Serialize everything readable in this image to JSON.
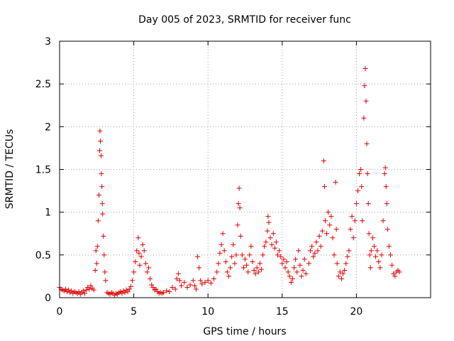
{
  "chart_data": {
    "type": "scatter",
    "title": "Day 005 of 2023, SRMTID for receiver func",
    "xlabel": "GPS time / hours",
    "ylabel": "SRMTID / TECUs",
    "xlim": [
      0,
      25
    ],
    "ylim": [
      0,
      3
    ],
    "xticks": [
      0,
      5,
      10,
      15,
      20
    ],
    "xtick_labels": [
      "0",
      "5",
      "10",
      "15",
      "20"
    ],
    "yticks": [
      0,
      0.5,
      1,
      1.5,
      2,
      2.5,
      3
    ],
    "ytick_labels": [
      "0",
      "0.5",
      "1",
      "1.5",
      "2",
      "2.5",
      "3"
    ],
    "grid": true,
    "marker": "plus",
    "marker_color": "#e00000",
    "series": [
      {
        "name": "SRMTID",
        "points": [
          [
            0.0,
            0.12
          ],
          [
            0.1,
            0.1
          ],
          [
            0.2,
            0.09
          ],
          [
            0.3,
            0.08
          ],
          [
            0.4,
            0.1
          ],
          [
            0.5,
            0.07
          ],
          [
            0.6,
            0.09
          ],
          [
            0.7,
            0.06
          ],
          [
            0.8,
            0.08
          ],
          [
            0.9,
            0.05
          ],
          [
            1.0,
            0.07
          ],
          [
            1.1,
            0.06
          ],
          [
            1.2,
            0.05
          ],
          [
            1.3,
            0.07
          ],
          [
            1.4,
            0.04
          ],
          [
            1.5,
            0.06
          ],
          [
            1.6,
            0.08
          ],
          [
            1.7,
            0.05
          ],
          [
            1.8,
            0.09
          ],
          [
            1.9,
            0.12
          ],
          [
            2.0,
            0.1
          ],
          [
            2.1,
            0.14
          ],
          [
            2.2,
            0.11
          ],
          [
            2.3,
            0.09
          ],
          [
            2.4,
            0.32
          ],
          [
            2.45,
            0.55
          ],
          [
            2.5,
            0.4
          ],
          [
            2.55,
            0.6
          ],
          [
            2.6,
            0.9
          ],
          [
            2.65,
            1.2
          ],
          [
            2.7,
            1.72
          ],
          [
            2.72,
            1.95
          ],
          [
            2.75,
            1.83
          ],
          [
            2.8,
            1.66
          ],
          [
            2.82,
            1.45
          ],
          [
            2.85,
            1.3
          ],
          [
            2.88,
            1.1
          ],
          [
            2.9,
            0.98
          ],
          [
            2.95,
            0.72
          ],
          [
            3.0,
            0.5
          ],
          [
            3.05,
            0.3
          ],
          [
            3.1,
            0.2
          ],
          [
            3.2,
            0.06
          ],
          [
            3.3,
            0.05
          ],
          [
            3.4,
            0.04
          ],
          [
            3.5,
            0.06
          ],
          [
            3.6,
            0.05
          ],
          [
            3.7,
            0.03
          ],
          [
            3.8,
            0.05
          ],
          [
            3.9,
            0.04
          ],
          [
            4.0,
            0.06
          ],
          [
            4.1,
            0.07
          ],
          [
            4.2,
            0.05
          ],
          [
            4.3,
            0.08
          ],
          [
            4.4,
            0.06
          ],
          [
            4.5,
            0.09
          ],
          [
            4.6,
            0.07
          ],
          [
            4.7,
            0.1
          ],
          [
            4.8,
            0.13
          ],
          [
            4.9,
            0.2
          ],
          [
            5.0,
            0.3
          ],
          [
            5.1,
            0.42
          ],
          [
            5.2,
            0.55
          ],
          [
            5.3,
            0.7
          ],
          [
            5.35,
            0.52
          ],
          [
            5.4,
            0.38
          ],
          [
            5.5,
            0.48
          ],
          [
            5.6,
            0.62
          ],
          [
            5.7,
            0.55
          ],
          [
            5.8,
            0.4
          ],
          [
            5.9,
            0.3
          ],
          [
            6.0,
            0.35
          ],
          [
            6.1,
            0.22
          ],
          [
            6.2,
            0.15
          ],
          [
            6.3,
            0.12
          ],
          [
            6.4,
            0.09
          ],
          [
            6.5,
            0.1
          ],
          [
            6.6,
            0.07
          ],
          [
            6.7,
            0.05
          ],
          [
            6.8,
            0.06
          ],
          [
            6.9,
            0.05
          ],
          [
            7.0,
            0.06
          ],
          [
            7.2,
            0.08
          ],
          [
            7.4,
            0.07
          ],
          [
            7.6,
            0.12
          ],
          [
            7.8,
            0.1
          ],
          [
            7.9,
            0.22
          ],
          [
            8.0,
            0.28
          ],
          [
            8.1,
            0.2
          ],
          [
            8.2,
            0.14
          ],
          [
            8.4,
            0.18
          ],
          [
            8.6,
            0.12
          ],
          [
            8.8,
            0.15
          ],
          [
            9.0,
            0.2
          ],
          [
            9.1,
            0.14
          ],
          [
            9.2,
            0.1
          ],
          [
            9.3,
            0.48
          ],
          [
            9.4,
            0.35
          ],
          [
            9.5,
            0.2
          ],
          [
            9.6,
            0.16
          ],
          [
            9.8,
            0.18
          ],
          [
            10.0,
            0.2
          ],
          [
            10.2,
            0.17
          ],
          [
            10.4,
            0.22
          ],
          [
            10.6,
            0.3
          ],
          [
            10.7,
            0.4
          ],
          [
            10.8,
            0.52
          ],
          [
            10.9,
            0.62
          ],
          [
            11.0,
            0.75
          ],
          [
            11.1,
            0.55
          ],
          [
            11.2,
            0.42
          ],
          [
            11.3,
            0.3
          ],
          [
            11.4,
            0.25
          ],
          [
            11.5,
            0.35
          ],
          [
            11.6,
            0.48
          ],
          [
            11.7,
            0.62
          ],
          [
            11.8,
            0.4
          ],
          [
            11.9,
            0.5
          ],
          [
            12.0,
            0.85
          ],
          [
            12.05,
            1.1
          ],
          [
            12.1,
            1.28
          ],
          [
            12.15,
            1.05
          ],
          [
            12.2,
            0.72
          ],
          [
            12.3,
            0.5
          ],
          [
            12.4,
            0.35
          ],
          [
            12.5,
            0.45
          ],
          [
            12.6,
            0.38
          ],
          [
            12.7,
            0.3
          ],
          [
            12.8,
            0.5
          ],
          [
            12.9,
            0.6
          ],
          [
            13.0,
            0.42
          ],
          [
            13.1,
            0.32
          ],
          [
            13.2,
            0.28
          ],
          [
            13.3,
            0.35
          ],
          [
            13.4,
            0.3
          ],
          [
            13.5,
            0.4
          ],
          [
            13.6,
            0.33
          ],
          [
            13.7,
            0.5
          ],
          [
            13.8,
            0.6
          ],
          [
            13.9,
            0.65
          ],
          [
            14.0,
            0.78
          ],
          [
            14.05,
            0.95
          ],
          [
            14.1,
            0.88
          ],
          [
            14.2,
            0.7
          ],
          [
            14.3,
            0.62
          ],
          [
            14.4,
            0.75
          ],
          [
            14.5,
            0.58
          ],
          [
            14.6,
            0.65
          ],
          [
            14.7,
            0.5
          ],
          [
            14.8,
            0.55
          ],
          [
            14.9,
            0.48
          ],
          [
            15.0,
            0.4
          ],
          [
            15.1,
            0.45
          ],
          [
            15.2,
            0.35
          ],
          [
            15.3,
            0.42
          ],
          [
            15.4,
            0.3
          ],
          [
            15.5,
            0.25
          ],
          [
            15.6,
            0.18
          ],
          [
            15.7,
            0.22
          ],
          [
            15.8,
            0.35
          ],
          [
            15.9,
            0.45
          ],
          [
            16.0,
            0.3
          ],
          [
            16.1,
            0.55
          ],
          [
            16.2,
            0.38
          ],
          [
            16.3,
            0.25
          ],
          [
            16.4,
            0.32
          ],
          [
            16.5,
            0.45
          ],
          [
            16.6,
            0.28
          ],
          [
            16.8,
            0.4
          ],
          [
            16.9,
            0.55
          ],
          [
            17.0,
            0.6
          ],
          [
            17.1,
            0.48
          ],
          [
            17.2,
            0.52
          ],
          [
            17.3,
            0.65
          ],
          [
            17.4,
            0.55
          ],
          [
            17.5,
            0.72
          ],
          [
            17.6,
            0.6
          ],
          [
            17.7,
            0.78
          ],
          [
            17.8,
            1.6
          ],
          [
            17.85,
            1.3
          ],
          [
            17.9,
            0.9
          ],
          [
            18.0,
            0.75
          ],
          [
            18.1,
            1.0
          ],
          [
            18.2,
            0.85
          ],
          [
            18.3,
            0.95
          ],
          [
            18.4,
            0.7
          ],
          [
            18.5,
            0.5
          ],
          [
            18.6,
            1.35
          ],
          [
            18.65,
            0.8
          ],
          [
            18.7,
            0.4
          ],
          [
            18.8,
            0.25
          ],
          [
            18.9,
            0.3
          ],
          [
            19.0,
            0.22
          ],
          [
            19.1,
            0.28
          ],
          [
            19.2,
            0.32
          ],
          [
            19.3,
            0.4
          ],
          [
            19.4,
            0.48
          ],
          [
            19.5,
            0.55
          ],
          [
            19.6,
            0.8
          ],
          [
            19.7,
            0.95
          ],
          [
            19.8,
            0.7
          ],
          [
            19.9,
            0.9
          ],
          [
            20.0,
            1.1
          ],
          [
            20.1,
            1.25
          ],
          [
            20.2,
            1.45
          ],
          [
            20.3,
            1.5
          ],
          [
            20.35,
            1.3
          ],
          [
            20.4,
            0.9
          ],
          [
            20.5,
            2.1
          ],
          [
            20.55,
            2.48
          ],
          [
            20.6,
            2.68
          ],
          [
            20.65,
            2.3
          ],
          [
            20.7,
            1.8
          ],
          [
            20.75,
            1.45
          ],
          [
            20.8,
            1.1
          ],
          [
            20.85,
            0.75
          ],
          [
            20.9,
            0.5
          ],
          [
            20.95,
            0.35
          ],
          [
            21.0,
            0.55
          ],
          [
            21.1,
            0.7
          ],
          [
            21.2,
            0.6
          ],
          [
            21.3,
            0.48
          ],
          [
            21.4,
            0.55
          ],
          [
            21.5,
            0.42
          ],
          [
            21.6,
            0.35
          ],
          [
            21.7,
            0.5
          ],
          [
            21.8,
            0.9
          ],
          [
            21.9,
            1.45
          ],
          [
            21.95,
            1.52
          ],
          [
            22.0,
            1.3
          ],
          [
            22.05,
            1.1
          ],
          [
            22.1,
            0.8
          ],
          [
            22.2,
            0.6
          ],
          [
            22.3,
            0.5
          ],
          [
            22.4,
            0.38
          ],
          [
            22.5,
            0.28
          ],
          [
            22.6,
            0.25
          ],
          [
            22.7,
            0.3
          ],
          [
            22.8,
            0.32
          ],
          [
            22.9,
            0.3
          ]
        ]
      }
    ]
  }
}
